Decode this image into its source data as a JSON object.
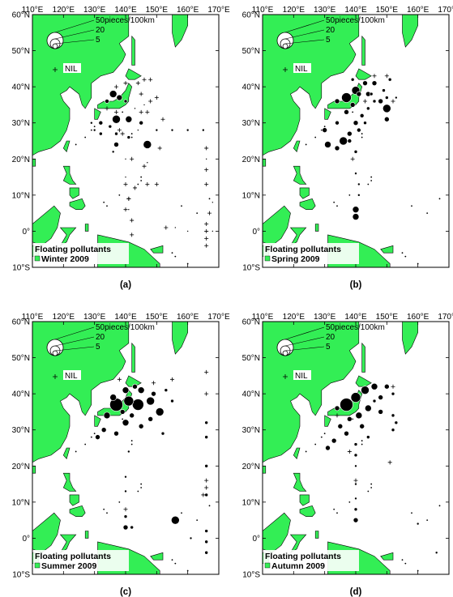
{
  "colors": {
    "land": "#33ee55",
    "sea": "#ffffff",
    "dot": "#000000",
    "dot_edge": "#ffffff",
    "frame": "#000000"
  },
  "axes": {
    "lon_ticks": [
      "110°E",
      "120°E",
      "130°E",
      "140°E",
      "150°E",
      "160°E",
      "170°E"
    ],
    "lat_ticks": [
      "60°N",
      "50°N",
      "40°N",
      "30°N",
      "20°N",
      "10°N",
      "0°",
      "10°S"
    ]
  },
  "legend": {
    "sizes": [
      "50pieces/100km",
      "20",
      "5"
    ],
    "nil_label": "NIL",
    "caption_line1": "Floating pollutants"
  },
  "panels": [
    {
      "letter": "(a)",
      "season": "Winter 2009",
      "dots": [
        [
          136,
          38,
          4.5
        ],
        [
          138,
          37,
          3.5
        ],
        [
          134,
          36,
          2.5
        ],
        [
          140,
          36,
          2
        ],
        [
          132,
          30,
          2.5
        ],
        [
          135,
          29,
          2
        ],
        [
          137,
          31,
          5
        ],
        [
          141,
          31,
          4
        ],
        [
          145,
          30,
          2.5
        ],
        [
          132,
          27,
          2
        ],
        [
          130,
          28,
          1.5
        ],
        [
          137,
          24,
          3
        ],
        [
          147,
          24,
          5
        ],
        [
          141,
          26,
          2
        ],
        [
          136,
          22,
          1.5
        ],
        [
          137,
          27,
          2
        ],
        [
          129,
          30,
          1.5
        ],
        [
          144,
          28,
          1
        ],
        [
          150,
          28,
          1.5
        ],
        [
          155,
          28,
          1.5
        ],
        [
          160,
          28,
          1.5
        ],
        [
          165,
          28,
          1.5
        ],
        [
          143,
          34,
          1
        ],
        [
          146,
          35,
          1
        ],
        [
          140,
          20,
          1
        ],
        [
          140,
          15,
          1
        ],
        [
          147,
          19,
          1
        ],
        [
          166,
          20,
          1
        ],
        [
          168,
          8,
          1
        ],
        [
          141,
          6,
          1
        ],
        [
          160,
          0,
          1
        ],
        [
          168,
          0,
          1
        ],
        [
          156,
          1,
          1
        ]
      ],
      "plus": [
        [
          140,
          41
        ],
        [
          144,
          41
        ],
        [
          146,
          42
        ],
        [
          148,
          42
        ],
        [
          145,
          38
        ],
        [
          148,
          36
        ],
        [
          150,
          37
        ],
        [
          137,
          40
        ],
        [
          134,
          34
        ],
        [
          137,
          33
        ],
        [
          145,
          33
        ],
        [
          147,
          33
        ],
        [
          138,
          28
        ],
        [
          139,
          27
        ],
        [
          142,
          20
        ],
        [
          140,
          13
        ],
        [
          141,
          9
        ],
        [
          140,
          6
        ],
        [
          142,
          3
        ],
        [
          141,
          9
        ],
        [
          143,
          12
        ],
        [
          146,
          18
        ],
        [
          147,
          13
        ],
        [
          150,
          13
        ],
        [
          151,
          23
        ],
        [
          152,
          31
        ],
        [
          166,
          23
        ],
        [
          166,
          17
        ],
        [
          166,
          13
        ],
        [
          167,
          5
        ],
        [
          166,
          2
        ],
        [
          166,
          0
        ],
        [
          166,
          -2
        ],
        [
          166,
          -4
        ],
        [
          153,
          1
        ],
        [
          142,
          -1
        ]
      ]
    },
    {
      "letter": "(b)",
      "season": "Spring 2009",
      "dots": [
        [
          137,
          37,
          6
        ],
        [
          140,
          39,
          5
        ],
        [
          141,
          38,
          3
        ],
        [
          143,
          41,
          3
        ],
        [
          146,
          41,
          3
        ],
        [
          144,
          38,
          3
        ],
        [
          148,
          36,
          3
        ],
        [
          150,
          34,
          5
        ],
        [
          150,
          31,
          3
        ],
        [
          146,
          36,
          2
        ],
        [
          149,
          39,
          2
        ],
        [
          134,
          36,
          3
        ],
        [
          130,
          28,
          3
        ],
        [
          131,
          24,
          4
        ],
        [
          134,
          23,
          3
        ],
        [
          136,
          25,
          5
        ],
        [
          138,
          27,
          3
        ],
        [
          140,
          30,
          3
        ],
        [
          137,
          33,
          3
        ],
        [
          139,
          35,
          3
        ],
        [
          142,
          32,
          2.5
        ],
        [
          141,
          28,
          2.5
        ],
        [
          138,
          25,
          2.5
        ],
        [
          134,
          30,
          2.5
        ],
        [
          144,
          34,
          2
        ],
        [
          143,
          30,
          2
        ],
        [
          140,
          22,
          2
        ],
        [
          140,
          16,
          1.5
        ],
        [
          140,
          6,
          4
        ],
        [
          140,
          4,
          4
        ],
        [
          145,
          38,
          2
        ],
        [
          150,
          37,
          2
        ],
        [
          153,
          37,
          1.5
        ],
        [
          151,
          42,
          2
        ],
        [
          139,
          42,
          2
        ],
        [
          141,
          10,
          1.5
        ],
        [
          141,
          13,
          1.5
        ]
      ],
      "plus": [
        [
          143,
          36
        ],
        [
          152,
          36
        ],
        [
          150,
          43
        ],
        [
          146,
          43
        ],
        [
          139,
          20
        ]
      ]
    },
    {
      "letter": "(c)",
      "season": "Summer 2009",
      "dots": [
        [
          137,
          37,
          8
        ],
        [
          141,
          38,
          6
        ],
        [
          144,
          37,
          7
        ],
        [
          148,
          38,
          5
        ],
        [
          145,
          41,
          4
        ],
        [
          149,
          40,
          3
        ],
        [
          151,
          35,
          5
        ],
        [
          148,
          33,
          3
        ],
        [
          145,
          31,
          3
        ],
        [
          142,
          34,
          3
        ],
        [
          139,
          35,
          3
        ],
        [
          134,
          34,
          4
        ],
        [
          133,
          30,
          3
        ],
        [
          131,
          28,
          3
        ],
        [
          137,
          29,
          3
        ],
        [
          140,
          32,
          4
        ],
        [
          136,
          39,
          4
        ],
        [
          140,
          41,
          4
        ],
        [
          143,
          42,
          3
        ],
        [
          153,
          41,
          2
        ],
        [
          155,
          38,
          2
        ],
        [
          152,
          29,
          2
        ],
        [
          166,
          32,
          2
        ],
        [
          166,
          28,
          2
        ],
        [
          166,
          20,
          2
        ],
        [
          166,
          12,
          2
        ],
        [
          140,
          6,
          2
        ],
        [
          140,
          3,
          3
        ],
        [
          142,
          3,
          2
        ],
        [
          156,
          5,
          5
        ],
        [
          166,
          2,
          2
        ],
        [
          166,
          -4,
          2
        ],
        [
          166,
          -1,
          2
        ],
        [
          141,
          24,
          1.5
        ],
        [
          140,
          17,
          1.5
        ],
        [
          140,
          13,
          1.5
        ],
        [
          161,
          0,
          1.5
        ]
      ],
      "plus": [
        [
          138,
          44
        ],
        [
          155,
          44
        ],
        [
          166,
          46
        ],
        [
          166,
          40
        ],
        [
          166,
          16
        ],
        [
          166,
          14
        ],
        [
          165,
          12
        ],
        [
          140,
          8
        ],
        [
          149,
          43
        ]
      ]
    },
    {
      "letter": "(d)",
      "season": "Autumn 2009",
      "dots": [
        [
          137,
          37,
          8
        ],
        [
          140,
          39,
          6
        ],
        [
          143,
          41,
          5
        ],
        [
          146,
          42,
          4
        ],
        [
          150,
          42,
          3
        ],
        [
          152,
          40,
          2
        ],
        [
          144,
          36,
          4
        ],
        [
          141,
          34,
          4
        ],
        [
          138,
          33,
          3
        ],
        [
          135,
          31,
          3
        ],
        [
          133,
          27,
          3
        ],
        [
          131,
          25,
          3
        ],
        [
          137,
          29,
          3
        ],
        [
          142,
          31,
          3
        ],
        [
          144,
          28,
          2
        ],
        [
          148,
          35,
          3
        ],
        [
          152,
          34,
          2
        ],
        [
          153,
          32,
          2
        ],
        [
          152,
          30,
          2
        ],
        [
          140,
          26,
          2
        ],
        [
          140,
          23,
          2
        ],
        [
          140,
          20,
          1.5
        ],
        [
          140,
          15,
          1.5
        ],
        [
          140,
          11,
          1.5
        ],
        [
          140,
          8,
          2
        ],
        [
          140,
          5,
          3
        ],
        [
          134,
          36,
          3
        ],
        [
          148,
          39,
          3
        ],
        [
          146,
          38,
          2
        ],
        [
          160,
          4,
          1.5
        ],
        [
          166,
          -4,
          1.5
        ]
      ],
      "plus": [
        [
          152,
          42
        ],
        [
          134,
          34
        ],
        [
          138,
          24
        ],
        [
          140,
          16
        ],
        [
          151,
          21
        ],
        [
          142,
          31
        ]
      ]
    }
  ]
}
